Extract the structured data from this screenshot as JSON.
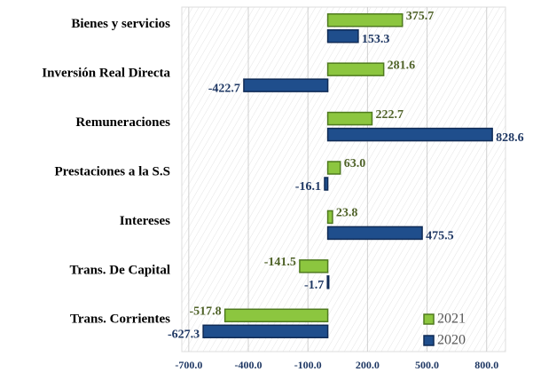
{
  "chart_data": {
    "type": "hbar",
    "categories": [
      "Bienes y servicios",
      "Inversión Real Directa",
      "Remuneraciones",
      "Prestaciones a la S.S",
      "Intereses",
      "Trans. De Capital",
      "Trans. Corrientes"
    ],
    "series": [
      {
        "name": "2021",
        "color": "#8cc63f",
        "values": [
          375.7,
          281.6,
          222.7,
          63,
          23.8,
          -141.5,
          -517.8
        ],
        "value_labels": [
          "375.7",
          "281.6",
          "222.7",
          "63.0",
          "23.8",
          "-141.5",
          "-517.8"
        ]
      },
      {
        "name": "2020",
        "color": "#1f4e8c",
        "values": [
          153.3,
          -422.7,
          828.6,
          -16.1,
          475.5,
          -1.7,
          -627.3
        ],
        "value_labels": [
          "153.3",
          "-422.7",
          "828.6",
          "-16.1",
          "475.5",
          "-1.7",
          "-627.3"
        ]
      }
    ],
    "xlim": [
      -735,
      895
    ],
    "xticks": [
      {
        "value": -700,
        "label": "-700.0"
      },
      {
        "value": -400,
        "label": "-400.0"
      },
      {
        "value": -100,
        "label": "-100.0"
      },
      {
        "value": 200,
        "label": "200.0"
      },
      {
        "value": 500,
        "label": "500.0"
      },
      {
        "value": 800,
        "label": "800.0"
      }
    ],
    "grid": true,
    "legend": "lower right"
  }
}
